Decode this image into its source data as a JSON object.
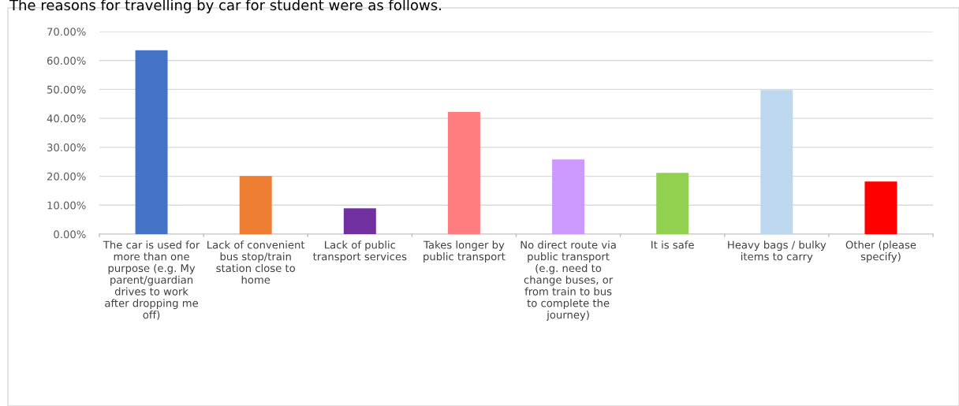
{
  "chart_data": {
    "type": "bar",
    "title": "The reasons for travelling by car for student were as follows.",
    "categories": [
      "The car is used for\nmore than one\npurpose (e.g. My\nparent/guardian\ndrives to work\nafter dropping me\noff)",
      "Lack of convenient\nbus stop/train\nstation close to\nhome",
      "Lack of public\ntransport services",
      "Takes longer by\npublic transport",
      "No direct route via\npublic transport\n(e.g. need to\nchange buses, or\nfrom train to bus\nto complete the\njourney)",
      "It is safe",
      "Heavy bags / bulky\nitems to carry",
      "Other (please\nspecify)"
    ],
    "values": [
      63.5,
      20.1,
      8.9,
      42.2,
      25.8,
      21.2,
      49.8,
      18.2
    ],
    "colors": [
      "#4472c4",
      "#ed7d31",
      "#7030a0",
      "#ff7c80",
      "#cc99ff",
      "#92d050",
      "#bdd7ee",
      "#ff0000"
    ],
    "ylim": [
      0,
      70
    ],
    "yticks": [
      {
        "value": 0,
        "label": "0.00%"
      },
      {
        "value": 10,
        "label": "10.00%"
      },
      {
        "value": 20,
        "label": "20.00%"
      },
      {
        "value": 30,
        "label": "30.00%"
      },
      {
        "value": 40,
        "label": "40.00%"
      },
      {
        "value": 50,
        "label": "50.00%"
      },
      {
        "value": 60,
        "label": "60.00%"
      },
      {
        "value": 70,
        "label": "70.00%"
      }
    ],
    "grid": "y"
  }
}
